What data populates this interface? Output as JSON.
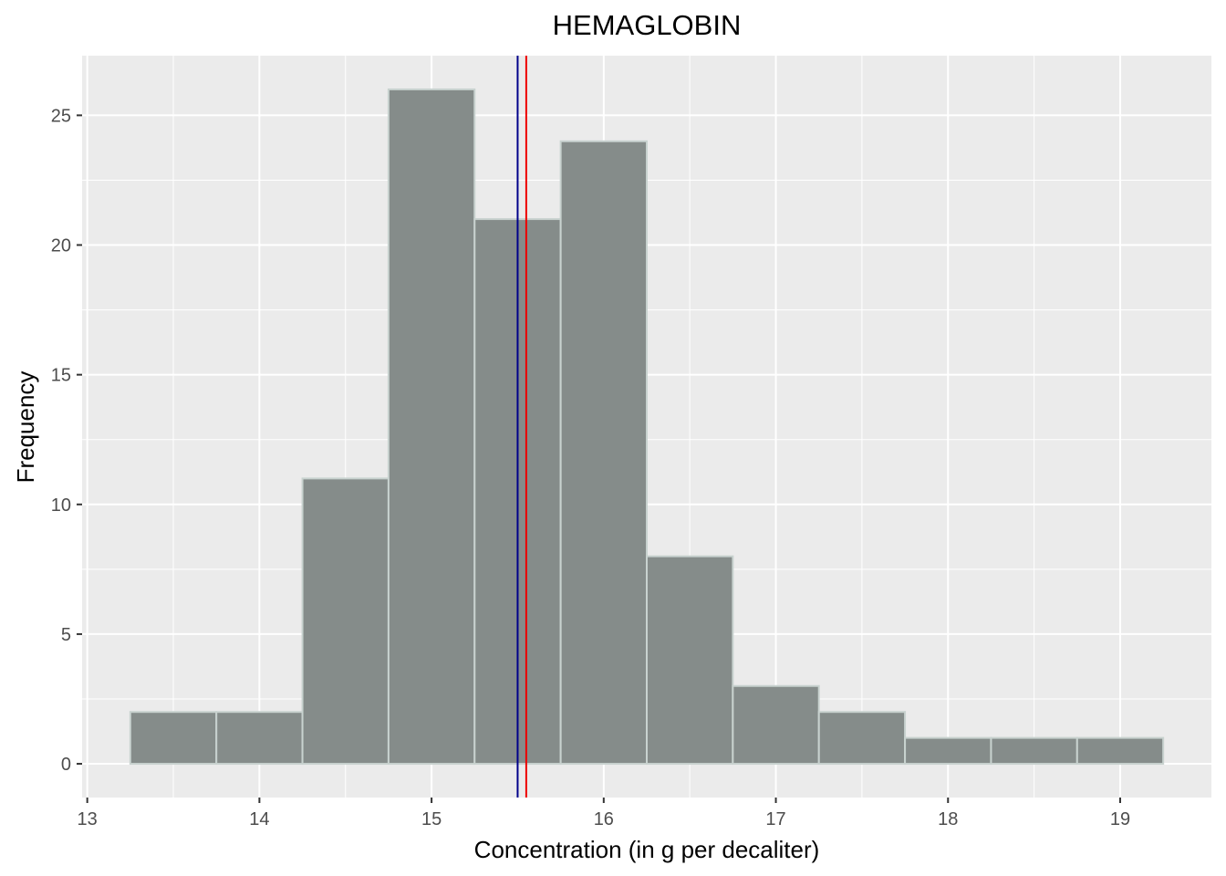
{
  "chart_data": {
    "type": "bar",
    "title": "HEMAGLOBIN",
    "xlabel": "Concentration (in g per decaliter)",
    "ylabel": "Frequency",
    "xlim": [
      12.97,
      19.53
    ],
    "ylim": [
      -1.3,
      27.3
    ],
    "x_ticks": [
      13,
      14,
      15,
      16,
      17,
      18,
      19
    ],
    "y_ticks": [
      0,
      5,
      10,
      15,
      20,
      25
    ],
    "bin_width": 0.5,
    "bins": [
      {
        "x0": 13.25,
        "x1": 13.75,
        "count": 2
      },
      {
        "x0": 13.75,
        "x1": 14.25,
        "count": 2
      },
      {
        "x0": 14.25,
        "x1": 14.75,
        "count": 11
      },
      {
        "x0": 14.75,
        "x1": 15.25,
        "count": 26
      },
      {
        "x0": 15.25,
        "x1": 15.75,
        "count": 21
      },
      {
        "x0": 15.75,
        "x1": 16.25,
        "count": 24
      },
      {
        "x0": 16.25,
        "x1": 16.75,
        "count": 8
      },
      {
        "x0": 16.75,
        "x1": 17.25,
        "count": 3
      },
      {
        "x0": 17.25,
        "x1": 17.75,
        "count": 2
      },
      {
        "x0": 17.75,
        "x1": 18.25,
        "count": 1
      },
      {
        "x0": 18.25,
        "x1": 18.75,
        "count": 1
      },
      {
        "x0": 18.75,
        "x1": 19.25,
        "count": 1
      }
    ],
    "reference_lines": [
      {
        "x": 15.5,
        "color": "#00008b"
      },
      {
        "x": 15.55,
        "color": "#ee0000"
      }
    ],
    "grid": true,
    "colors": {
      "panel_background": "#ebebeb",
      "grid": "#ffffff",
      "bar_fill": "#858c8a",
      "bar_outline": "#c8d2cf"
    }
  }
}
